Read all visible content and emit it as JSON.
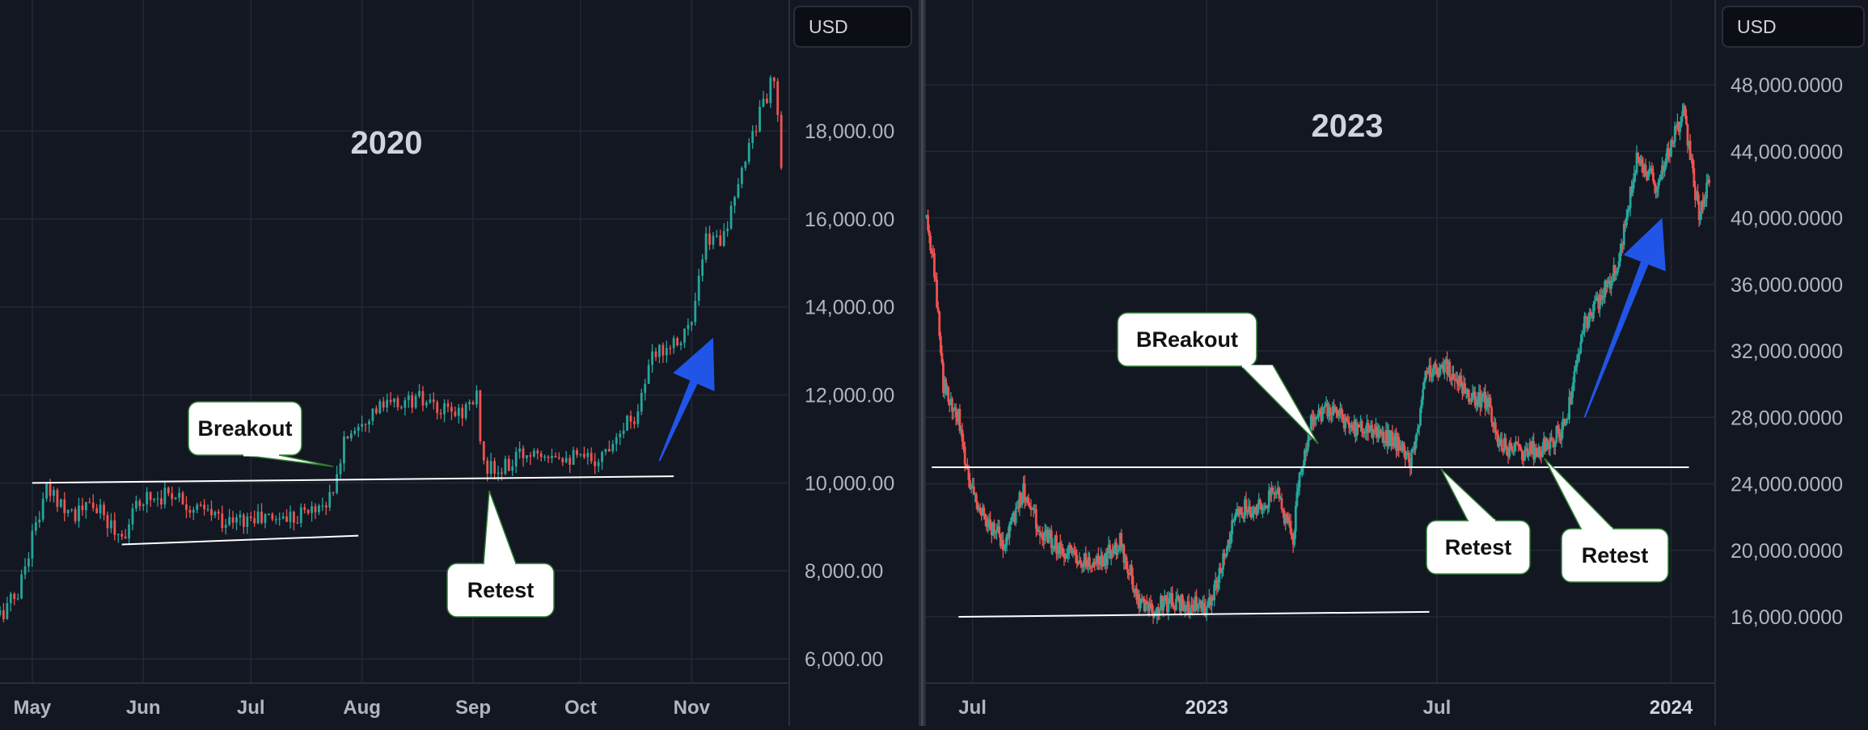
{
  "currency_label": "USD",
  "chart_data": [
    {
      "type": "candlestick",
      "title": "2020",
      "x_ticks": [
        "May",
        "Jun",
        "Jul",
        "Aug",
        "Sep",
        "Oct",
        "Nov"
      ],
      "y_ticks": [
        "6,000.00",
        "8,000.00",
        "10,000.00",
        "12,000.00",
        "14,000.00",
        "16,000.00",
        "18,000.00"
      ],
      "ylim": [
        5500,
        19500
      ],
      "grid": true,
      "x": [
        "2020-04-22",
        "2020-04-27",
        "2020-05-01",
        "2020-05-05",
        "2020-05-09",
        "2020-05-13",
        "2020-05-18",
        "2020-05-22",
        "2020-05-26",
        "2020-06-01",
        "2020-06-05",
        "2020-06-10",
        "2020-06-15",
        "2020-06-20",
        "2020-06-25",
        "2020-07-01",
        "2020-07-06",
        "2020-07-12",
        "2020-07-18",
        "2020-07-24",
        "2020-07-27",
        "2020-08-01",
        "2020-08-06",
        "2020-08-11",
        "2020-08-17",
        "2020-08-22",
        "2020-08-28",
        "2020-09-02",
        "2020-09-04",
        "2020-09-08",
        "2020-09-14",
        "2020-09-19",
        "2020-09-25",
        "2020-10-01",
        "2020-10-07",
        "2020-10-12",
        "2020-10-16",
        "2020-10-21",
        "2020-10-24",
        "2020-10-28",
        "2020-11-01",
        "2020-11-05",
        "2020-11-09",
        "2020-11-13",
        "2020-11-17",
        "2020-11-21",
        "2020-11-24",
        "2020-11-26"
      ],
      "close": [
        7000,
        7500,
        8800,
        9800,
        9600,
        9300,
        9500,
        9100,
        8800,
        9700,
        9700,
        9800,
        9400,
        9300,
        9100,
        9200,
        9200,
        9250,
        9400,
        9700,
        11000,
        11500,
        11700,
        11800,
        11900,
        11600,
        11600,
        11900,
        10400,
        10200,
        10600,
        10800,
        10700,
        10500,
        10600,
        11300,
        11500,
        12800,
        13100,
        13300,
        13600,
        15500,
        15600,
        16300,
        17800,
        18600,
        19200,
        17100
      ],
      "annotations": [
        {
          "text": "Breakout",
          "x": "2020-07-28",
          "y": 10000
        },
        {
          "text": "Retest",
          "x": "2020-09-04",
          "y": 10000
        }
      ],
      "lines": [
        {
          "x1": "2020-05-01",
          "y1": 10000,
          "x2": "2020-10-27",
          "y2": 10150
        },
        {
          "x1": "2020-05-26",
          "y1": 8600,
          "x2": "2020-07-31",
          "y2": 8800
        }
      ],
      "arrow": {
        "from": [
          "2020-10-23",
          10500
        ],
        "to": [
          "2020-11-07",
          13300
        ]
      }
    },
    {
      "type": "candlestick",
      "title": "2023",
      "x_ticks": [
        "Jul",
        "2023",
        "Jul",
        "2024"
      ],
      "y_ticks": [
        "16,000.0000",
        "20,000.0000",
        "24,000.0000",
        "28,000.0000",
        "32,000.0000",
        "36,000.0000",
        "40,000.0000",
        "44,000.0000",
        "48,000.0000"
      ],
      "ylim": [
        13500,
        51000
      ],
      "grid": true,
      "x": [
        "2022-05-26",
        "2022-06-01",
        "2022-06-08",
        "2022-06-14",
        "2022-06-20",
        "2022-06-28",
        "2022-07-10",
        "2022-07-25",
        "2022-08-10",
        "2022-08-25",
        "2022-09-10",
        "2022-09-25",
        "2022-10-10",
        "2022-10-25",
        "2022-11-09",
        "2022-11-20",
        "2022-12-05",
        "2022-12-20",
        "2023-01-05",
        "2023-01-14",
        "2023-01-25",
        "2023-02-08",
        "2023-02-25",
        "2023-03-10",
        "2023-03-14",
        "2023-03-25",
        "2023-04-10",
        "2023-04-25",
        "2023-05-10",
        "2023-05-25",
        "2023-06-10",
        "2023-06-15",
        "2023-06-22",
        "2023-07-10",
        "2023-07-25",
        "2023-08-10",
        "2023-08-17",
        "2023-08-30",
        "2023-09-10",
        "2023-09-25",
        "2023-10-10",
        "2023-10-24",
        "2023-11-05",
        "2023-11-20",
        "2023-12-05",
        "2023-12-20",
        "2024-01-02",
        "2024-01-11",
        "2024-01-23",
        "2024-01-31"
      ],
      "close": [
        40000,
        37000,
        30000,
        29000,
        28000,
        24000,
        22000,
        20500,
        23500,
        21000,
        20000,
        19500,
        19300,
        20500,
        17000,
        16500,
        17000,
        16700,
        16800,
        19500,
        22500,
        22500,
        23500,
        20500,
        24000,
        28000,
        28500,
        27500,
        27000,
        26800,
        25500,
        26500,
        30500,
        31000,
        29300,
        29000,
        26500,
        26000,
        25900,
        26300,
        27500,
        33500,
        35000,
        37000,
        43500,
        42000,
        44500,
        46500,
        40000,
        42500
      ],
      "annotations": [
        {
          "text": "BReakout",
          "x": "2023-03-10",
          "y": 25000
        },
        {
          "text": "Retest",
          "x": "2023-06-15",
          "y": 25000
        },
        {
          "text": "Retest",
          "x": "2023-09-01",
          "y": 25000
        }
      ],
      "lines": [
        {
          "x1": "2022-05-30",
          "y1": 25000,
          "x2": "2024-01-15",
          "y2": 25000
        },
        {
          "x1": "2022-06-20",
          "y1": 16000,
          "x2": "2023-06-25",
          "y2": 16300
        }
      ],
      "arrow": {
        "from": [
          "2023-10-25",
          28000
        ],
        "to": [
          "2023-12-25",
          40000
        ]
      }
    }
  ]
}
